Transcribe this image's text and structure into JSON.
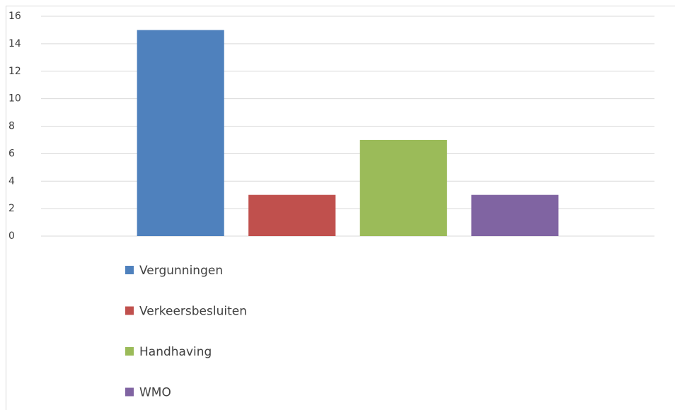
{
  "chart_data": {
    "type": "bar",
    "categories": [
      null
    ],
    "series": [
      {
        "name": "Vergunningen",
        "color": "#4f81bd",
        "values": [
          15
        ]
      },
      {
        "name": "Verkeersbesluiten",
        "color": "#c0504d",
        "values": [
          3
        ]
      },
      {
        "name": "Handhaving",
        "color": "#9bbb59",
        "values": [
          7
        ]
      },
      {
        "name": "WMO",
        "color": "#8064a2",
        "values": [
          3
        ]
      }
    ],
    "ylim": [
      0,
      16
    ],
    "yticks": [
      0,
      2,
      4,
      6,
      8,
      10,
      12,
      14,
      16
    ],
    "grid": true,
    "legend": "bottom"
  }
}
